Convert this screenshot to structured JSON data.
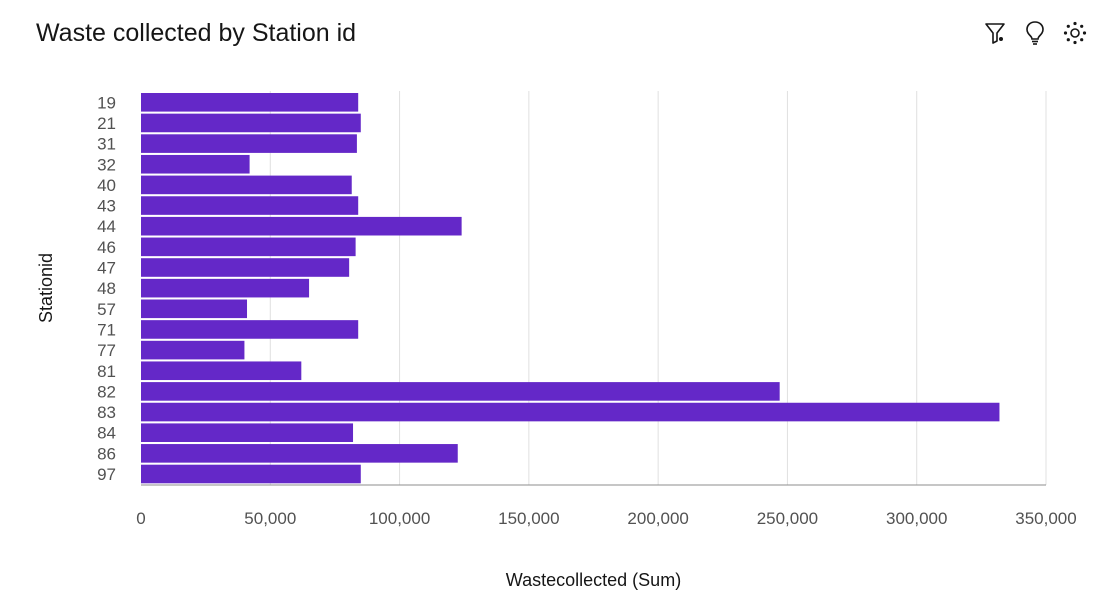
{
  "header": {
    "title": "Waste collected by Station id"
  },
  "toolbar": {
    "icons": [
      "filter-icon",
      "lightbulb-icon",
      "settings-dots-icon"
    ]
  },
  "colors": {
    "bar": "#6428c8",
    "grid": "#e0e0e0",
    "axis": "#8d8d8d"
  },
  "chart_data": {
    "type": "bar",
    "orientation": "horizontal",
    "title": "Waste collected by Station id",
    "xlabel": "Wastecollected (Sum)",
    "ylabel": "Stationid",
    "xlim": [
      0,
      350000
    ],
    "xticks": [
      0,
      50000,
      100000,
      150000,
      200000,
      250000,
      300000,
      350000
    ],
    "xtick_labels": [
      "0",
      "50,000",
      "100,000",
      "150,000",
      "200,000",
      "250,000",
      "300,000",
      "350,000"
    ],
    "grid": true,
    "categories": [
      "19",
      "21",
      "31",
      "32",
      "40",
      "43",
      "44",
      "46",
      "47",
      "48",
      "57",
      "71",
      "77",
      "81",
      "82",
      "83",
      "84",
      "86",
      "97"
    ],
    "values": [
      84000,
      85000,
      83500,
      42000,
      81500,
      84000,
      124000,
      83000,
      80500,
      65000,
      41000,
      84000,
      40000,
      62000,
      247000,
      332000,
      82000,
      122500,
      85000
    ]
  }
}
